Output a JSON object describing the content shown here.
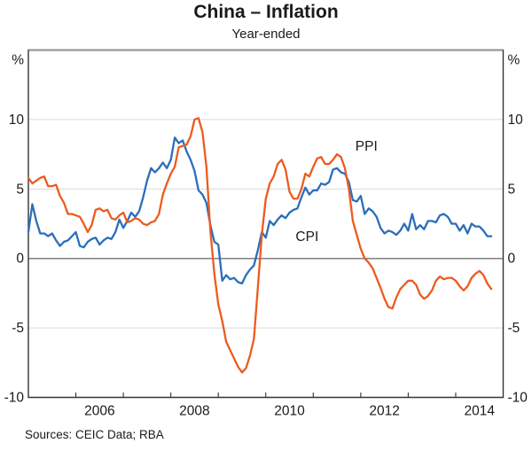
{
  "header": {
    "title": "China – Inflation",
    "subtitle": "Year-ended"
  },
  "footer": {
    "sources": "Sources:  CEIC Data; RBA"
  },
  "chart_data": {
    "type": "line",
    "title": "China – Inflation",
    "subtitle": "Year-ended",
    "unit_label": "%",
    "xlim": [
      2005,
      2015
    ],
    "ylim": [
      -10,
      15
    ],
    "y_ticks": [
      10,
      5,
      0,
      -5,
      -10
    ],
    "y_tick_labels": [
      "10",
      "5",
      "0",
      "-5",
      "-10"
    ],
    "x_label_years": [
      "2006",
      "2008",
      "2010",
      "2012",
      "2014"
    ],
    "frequency": "monthly",
    "start": "2005-01",
    "end": "2014-10",
    "grid_on": true,
    "colors": {
      "grid": "#d9d9d9",
      "zero_line": "#808080",
      "frame": "#333333",
      "top_rule": "#999999"
    },
    "series": [
      {
        "name": "CPI",
        "color": "#2a6ebb",
        "label_at": {
          "x": 2010.87,
          "y": 1.6
        },
        "values": [
          1.9,
          3.9,
          2.7,
          1.8,
          1.8,
          1.6,
          1.8,
          1.3,
          0.9,
          1.2,
          1.3,
          1.6,
          1.9,
          0.9,
          0.8,
          1.2,
          1.4,
          1.5,
          1.0,
          1.3,
          1.5,
          1.4,
          1.9,
          2.8,
          2.2,
          2.7,
          3.3,
          3.0,
          3.4,
          4.4,
          5.6,
          6.5,
          6.2,
          6.5,
          6.9,
          6.5,
          7.1,
          8.7,
          8.3,
          8.5,
          7.7,
          7.1,
          6.3,
          4.9,
          4.6,
          4.0,
          2.4,
          1.2,
          1.0,
          -1.6,
          -1.2,
          -1.5,
          -1.4,
          -1.7,
          -1.8,
          -1.2,
          -0.8,
          -0.5,
          0.6,
          1.9,
          1.5,
          2.7,
          2.4,
          2.8,
          3.1,
          2.9,
          3.3,
          3.5,
          3.6,
          4.4,
          5.1,
          4.6,
          4.9,
          4.9,
          5.4,
          5.3,
          5.5,
          6.4,
          6.5,
          6.2,
          6.1,
          5.5,
          4.2,
          4.1,
          4.5,
          3.2,
          3.6,
          3.4,
          3.0,
          2.2,
          1.8,
          2.0,
          1.9,
          1.7,
          2.0,
          2.5,
          2.0,
          3.2,
          2.1,
          2.4,
          2.1,
          2.7,
          2.7,
          2.6,
          3.1,
          3.2,
          3.0,
          2.5,
          2.5,
          2.0,
          2.4,
          1.8,
          2.5,
          2.3,
          2.3,
          2.0,
          1.6,
          1.6
        ]
      },
      {
        "name": "PPI",
        "color": "#ec5b1f",
        "label_at": {
          "x": 2012.12,
          "y": 8.1
        },
        "values": [
          5.8,
          5.4,
          5.6,
          5.8,
          5.9,
          5.2,
          5.2,
          5.3,
          4.5,
          4.0,
          3.2,
          3.2,
          3.1,
          3.0,
          2.5,
          1.9,
          2.4,
          3.5,
          3.6,
          3.4,
          3.5,
          2.9,
          2.8,
          3.1,
          3.3,
          2.6,
          2.7,
          2.9,
          2.8,
          2.5,
          2.4,
          2.6,
          2.7,
          3.2,
          4.6,
          5.4,
          6.1,
          6.6,
          8.0,
          8.1,
          8.2,
          8.8,
          10.0,
          10.1,
          9.1,
          6.6,
          2.0,
          -1.1,
          -3.3,
          -4.5,
          -6.0,
          -6.6,
          -7.2,
          -7.8,
          -8.2,
          -7.9,
          -7.0,
          -5.8,
          -2.1,
          1.7,
          4.3,
          5.4,
          5.9,
          6.8,
          7.1,
          6.4,
          4.8,
          4.3,
          4.3,
          5.0,
          6.1,
          5.9,
          6.6,
          7.2,
          7.3,
          6.8,
          6.8,
          7.1,
          7.5,
          7.3,
          6.5,
          5.0,
          2.7,
          1.7,
          0.7,
          0.0,
          -0.3,
          -0.7,
          -1.4,
          -2.1,
          -2.9,
          -3.5,
          -3.6,
          -2.8,
          -2.2,
          -1.9,
          -1.6,
          -1.6,
          -1.9,
          -2.6,
          -2.9,
          -2.7,
          -2.3,
          -1.6,
          -1.3,
          -1.5,
          -1.4,
          -1.4,
          -1.6,
          -2.0,
          -2.3,
          -2.0,
          -1.4,
          -1.1,
          -0.9,
          -1.2,
          -1.8,
          -2.2
        ]
      }
    ]
  }
}
